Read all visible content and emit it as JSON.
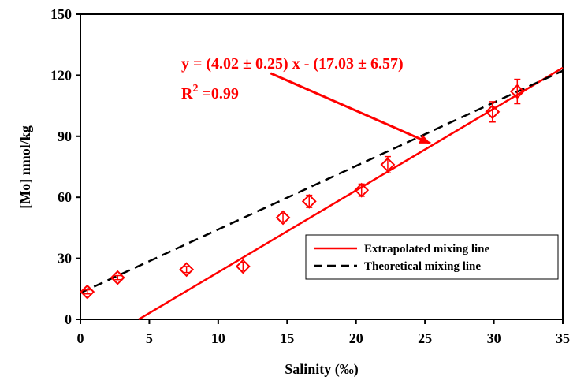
{
  "chart_data": {
    "type": "scatter",
    "xlabel": "Salinity (‰)",
    "ylabel": "[Mo] nmol/kg",
    "xlim": [
      0,
      35
    ],
    "ylim": [
      0,
      150
    ],
    "xticks": [
      0,
      5,
      10,
      15,
      20,
      25,
      30,
      35
    ],
    "yticks": [
      0,
      30,
      60,
      90,
      120,
      150
    ],
    "xtick_labels": [
      "0",
      "5",
      "10",
      "15",
      "20",
      "25",
      "30",
      "35"
    ],
    "ytick_labels": [
      "0",
      "30",
      "60",
      "90",
      "120",
      "150"
    ],
    "grid": false,
    "series": [
      {
        "marker": "diamond",
        "color": "#ff0000",
        "x": [
          0.5,
          2.7,
          7.7,
          11.8,
          14.7,
          16.6,
          20.4,
          22.3,
          29.9,
          31.7
        ],
        "y": [
          13.5,
          20.5,
          24.5,
          26,
          50,
          58,
          63.5,
          76,
          102,
          112
        ],
        "y_error": [
          1,
          1,
          1.5,
          2,
          2,
          3,
          3,
          4,
          5,
          6
        ]
      }
    ],
    "lines": [
      {
        "name": "Extrapolated mixing line",
        "style": "solid",
        "color": "#ff0000",
        "slope": 4.02,
        "intercept": -17.03,
        "x_range": [
          4.24,
          35
        ]
      },
      {
        "name": "Theoretical mixing line",
        "style": "dashed",
        "color": "#000000",
        "slope": 3.12,
        "intercept": 13,
        "x_range": [
          0,
          35
        ]
      }
    ],
    "annotations": {
      "equation": "y = (4.02 ± 0.25) x - (17.03 ± 6.57)",
      "r2_base": "R",
      "r2_exp": "2",
      "r2_value": " =0.99",
      "color": "#ff0000",
      "arrow_from": [
        13.8,
        121
      ],
      "arrow_to": [
        25.4,
        86.5
      ]
    },
    "legend": {
      "placement": "bottom-right",
      "entries": [
        "Extrapolated mixing line",
        "Theoretical mixing line"
      ]
    }
  }
}
